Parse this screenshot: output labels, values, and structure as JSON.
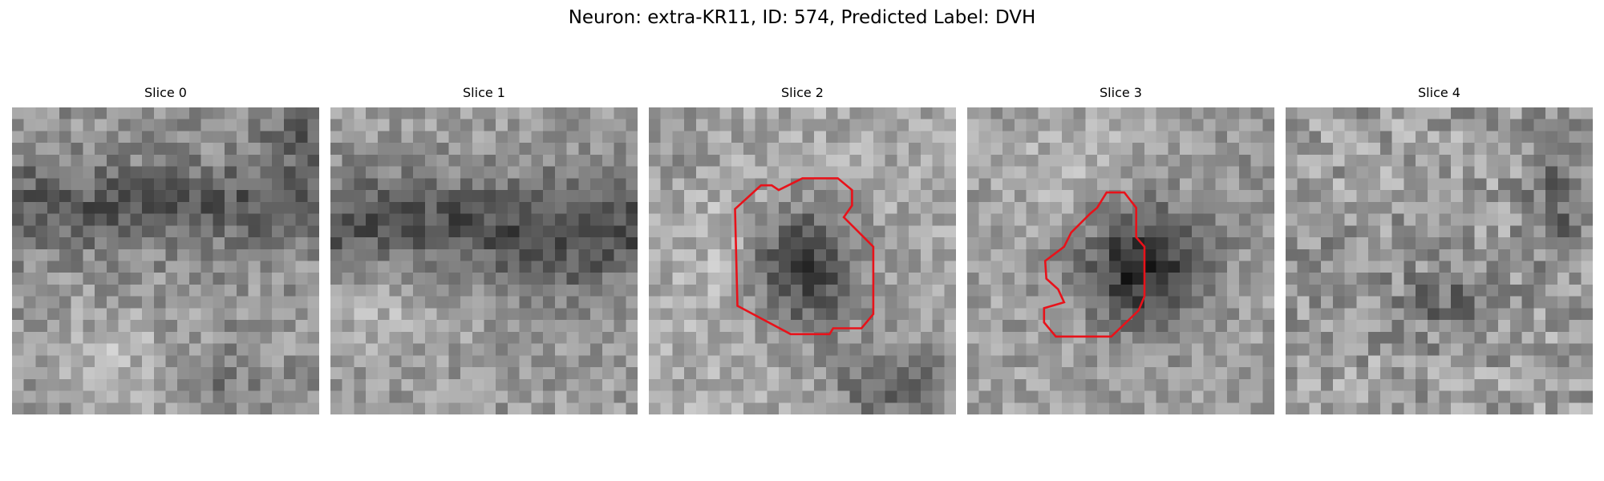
{
  "figure": {
    "title": "Neuron: extra-KR11, ID: 574, Predicted Label: DVH"
  },
  "colors": {
    "background": "#ffffff",
    "contour": "#e8121a",
    "colormap": "grayscale"
  },
  "panels": [
    {
      "title": "Slice 0",
      "has_contour": false
    },
    {
      "title": "Slice 1",
      "has_contour": false
    },
    {
      "title": "Slice 2",
      "has_contour": true
    },
    {
      "title": "Slice 3",
      "has_contour": true
    },
    {
      "title": "Slice 4",
      "has_contour": false
    }
  ]
}
